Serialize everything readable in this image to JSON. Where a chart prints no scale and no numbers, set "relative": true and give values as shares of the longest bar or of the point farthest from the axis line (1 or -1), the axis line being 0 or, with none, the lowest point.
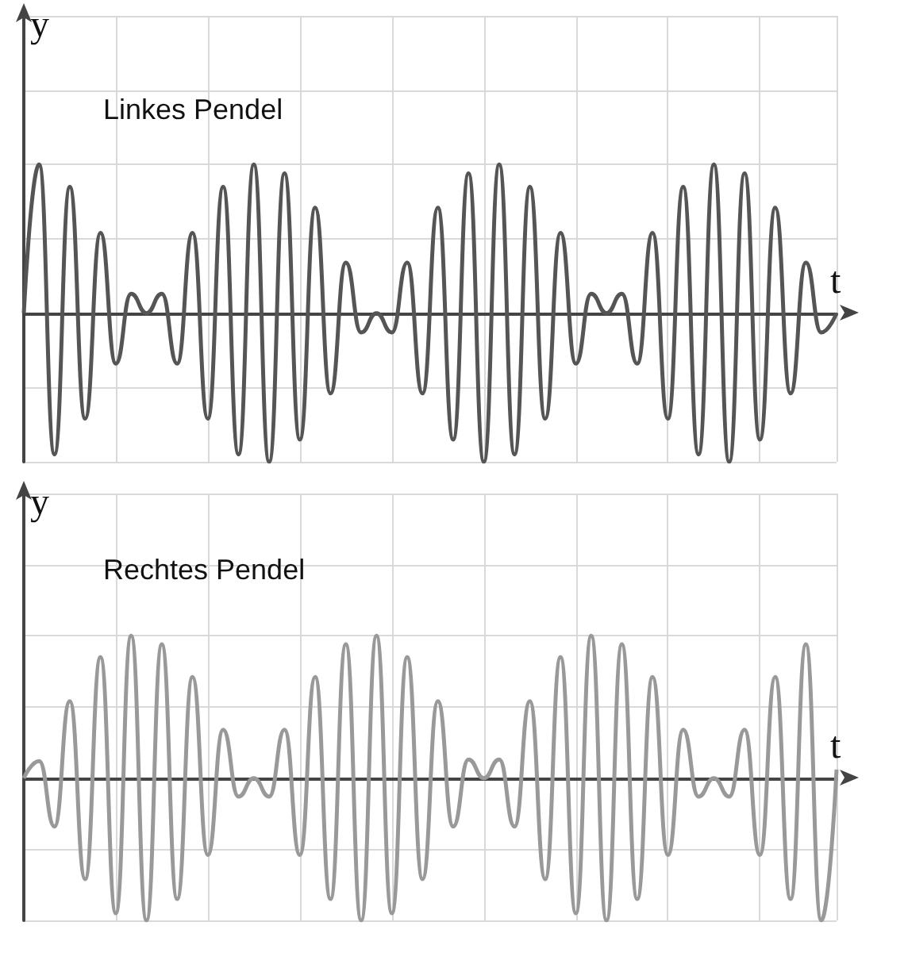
{
  "chart_data": [
    {
      "type": "line",
      "title": "Linkes Pendel",
      "xlabel": "t",
      "ylabel": "y",
      "relative": true,
      "grid": true,
      "marker": "none",
      "categories": [
        null,
        null,
        null,
        null,
        null,
        null,
        null,
        null,
        null,
        null,
        null,
        null,
        null,
        null,
        null,
        null,
        null,
        null,
        null,
        null,
        null,
        null,
        null,
        null,
        null,
        null,
        null,
        null,
        null,
        null,
        null,
        null,
        null,
        null,
        null,
        null,
        null,
        null,
        null,
        null,
        null,
        null,
        null,
        null,
        null,
        null,
        null,
        null,
        null,
        null,
        null,
        null,
        null,
        null
      ],
      "series": [
        {
          "color": "#555555",
          "values": [
            0,
            1,
            -0.95,
            0.85,
            -0.71,
            0.54,
            -0.34,
            0.13,
            0,
            0.13,
            -0.34,
            0.54,
            -0.71,
            0.85,
            -0.95,
            1,
            -1,
            0.94,
            -0.85,
            0.71,
            -0.54,
            0.34,
            -0.13,
            0,
            -0.13,
            0.34,
            -0.54,
            0.71,
            -0.85,
            0.94,
            -1,
            1,
            -0.95,
            0.85,
            -0.71,
            0.54,
            -0.34,
            0.13,
            0,
            0.13,
            -0.34,
            0.54,
            -0.71,
            0.85,
            -0.95,
            1,
            -1,
            0.94,
            -0.85,
            0.71,
            -0.54,
            0.34,
            -0.13,
            0
          ]
        }
      ]
    },
    {
      "type": "line",
      "title": "Rechtes Pendel",
      "xlabel": "t",
      "ylabel": "y",
      "relative": true,
      "grid": true,
      "marker": "none",
      "categories": [
        null,
        null,
        null,
        null,
        null,
        null,
        null,
        null,
        null,
        null,
        null,
        null,
        null,
        null,
        null,
        null,
        null,
        null,
        null,
        null,
        null,
        null,
        null,
        null,
        null,
        null,
        null,
        null,
        null,
        null,
        null,
        null,
        null,
        null,
        null,
        null,
        null,
        null,
        null,
        null,
        null,
        null,
        null,
        null,
        null,
        null,
        null,
        null,
        null,
        null,
        null,
        null,
        null,
        null
      ],
      "series": [
        {
          "color": "#999999",
          "values": [
            0,
            0.12,
            -0.34,
            0.54,
            -0.71,
            0.85,
            -0.95,
            1,
            -1,
            0.94,
            -0.85,
            0.71,
            -0.54,
            0.34,
            -0.13,
            0,
            -0.13,
            0.34,
            -0.54,
            0.71,
            -0.85,
            0.94,
            -1,
            1,
            -0.95,
            0.85,
            -0.71,
            0.54,
            -0.34,
            0.13,
            0,
            0.13,
            -0.34,
            0.54,
            -0.71,
            0.85,
            -0.95,
            1,
            -1,
            0.94,
            -0.85,
            0.71,
            -0.54,
            0.34,
            -0.13,
            0,
            -0.13,
            0.34,
            -0.54,
            0.71,
            -0.85,
            0.94,
            -1,
            0.06
          ]
        }
      ]
    }
  ]
}
